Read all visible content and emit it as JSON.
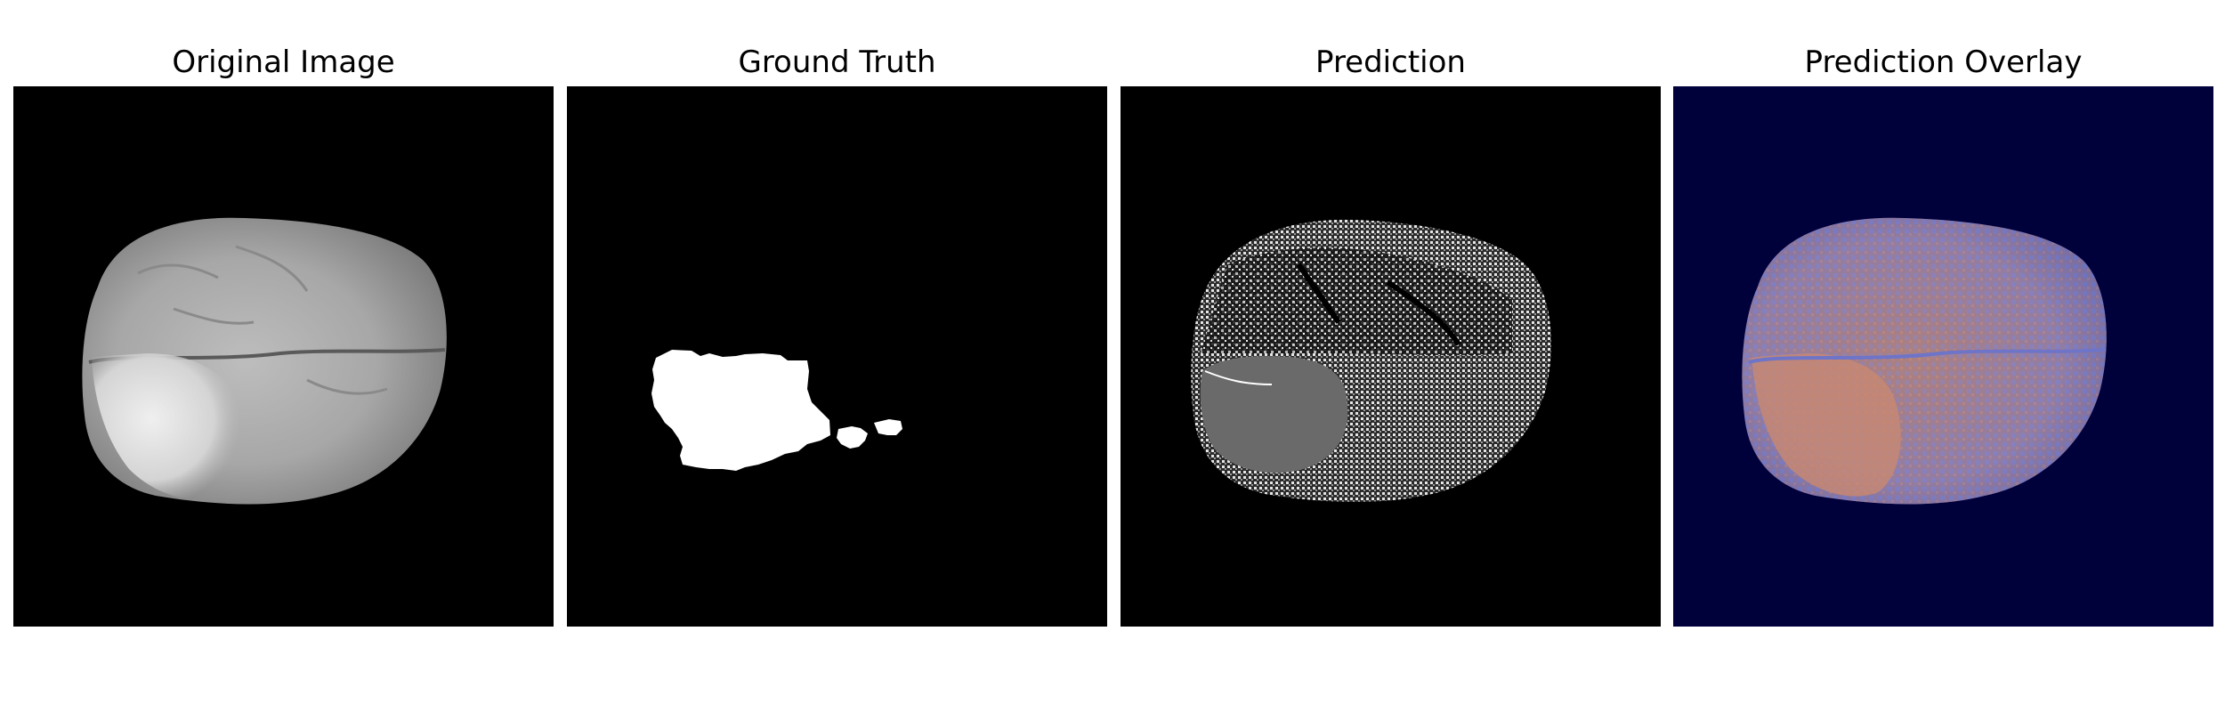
{
  "figure": {
    "panels": [
      {
        "title": "Original Image"
      },
      {
        "title": "Ground Truth"
      },
      {
        "title": "Prediction"
      },
      {
        "title": "Prediction Overlay"
      }
    ]
  },
  "colors": {
    "figure_background": "#ffffff",
    "image_background": "#000000",
    "overlay_background": "#00003a",
    "overlay_positive": "#c98870",
    "overlay_negative": "#6e74c8"
  }
}
